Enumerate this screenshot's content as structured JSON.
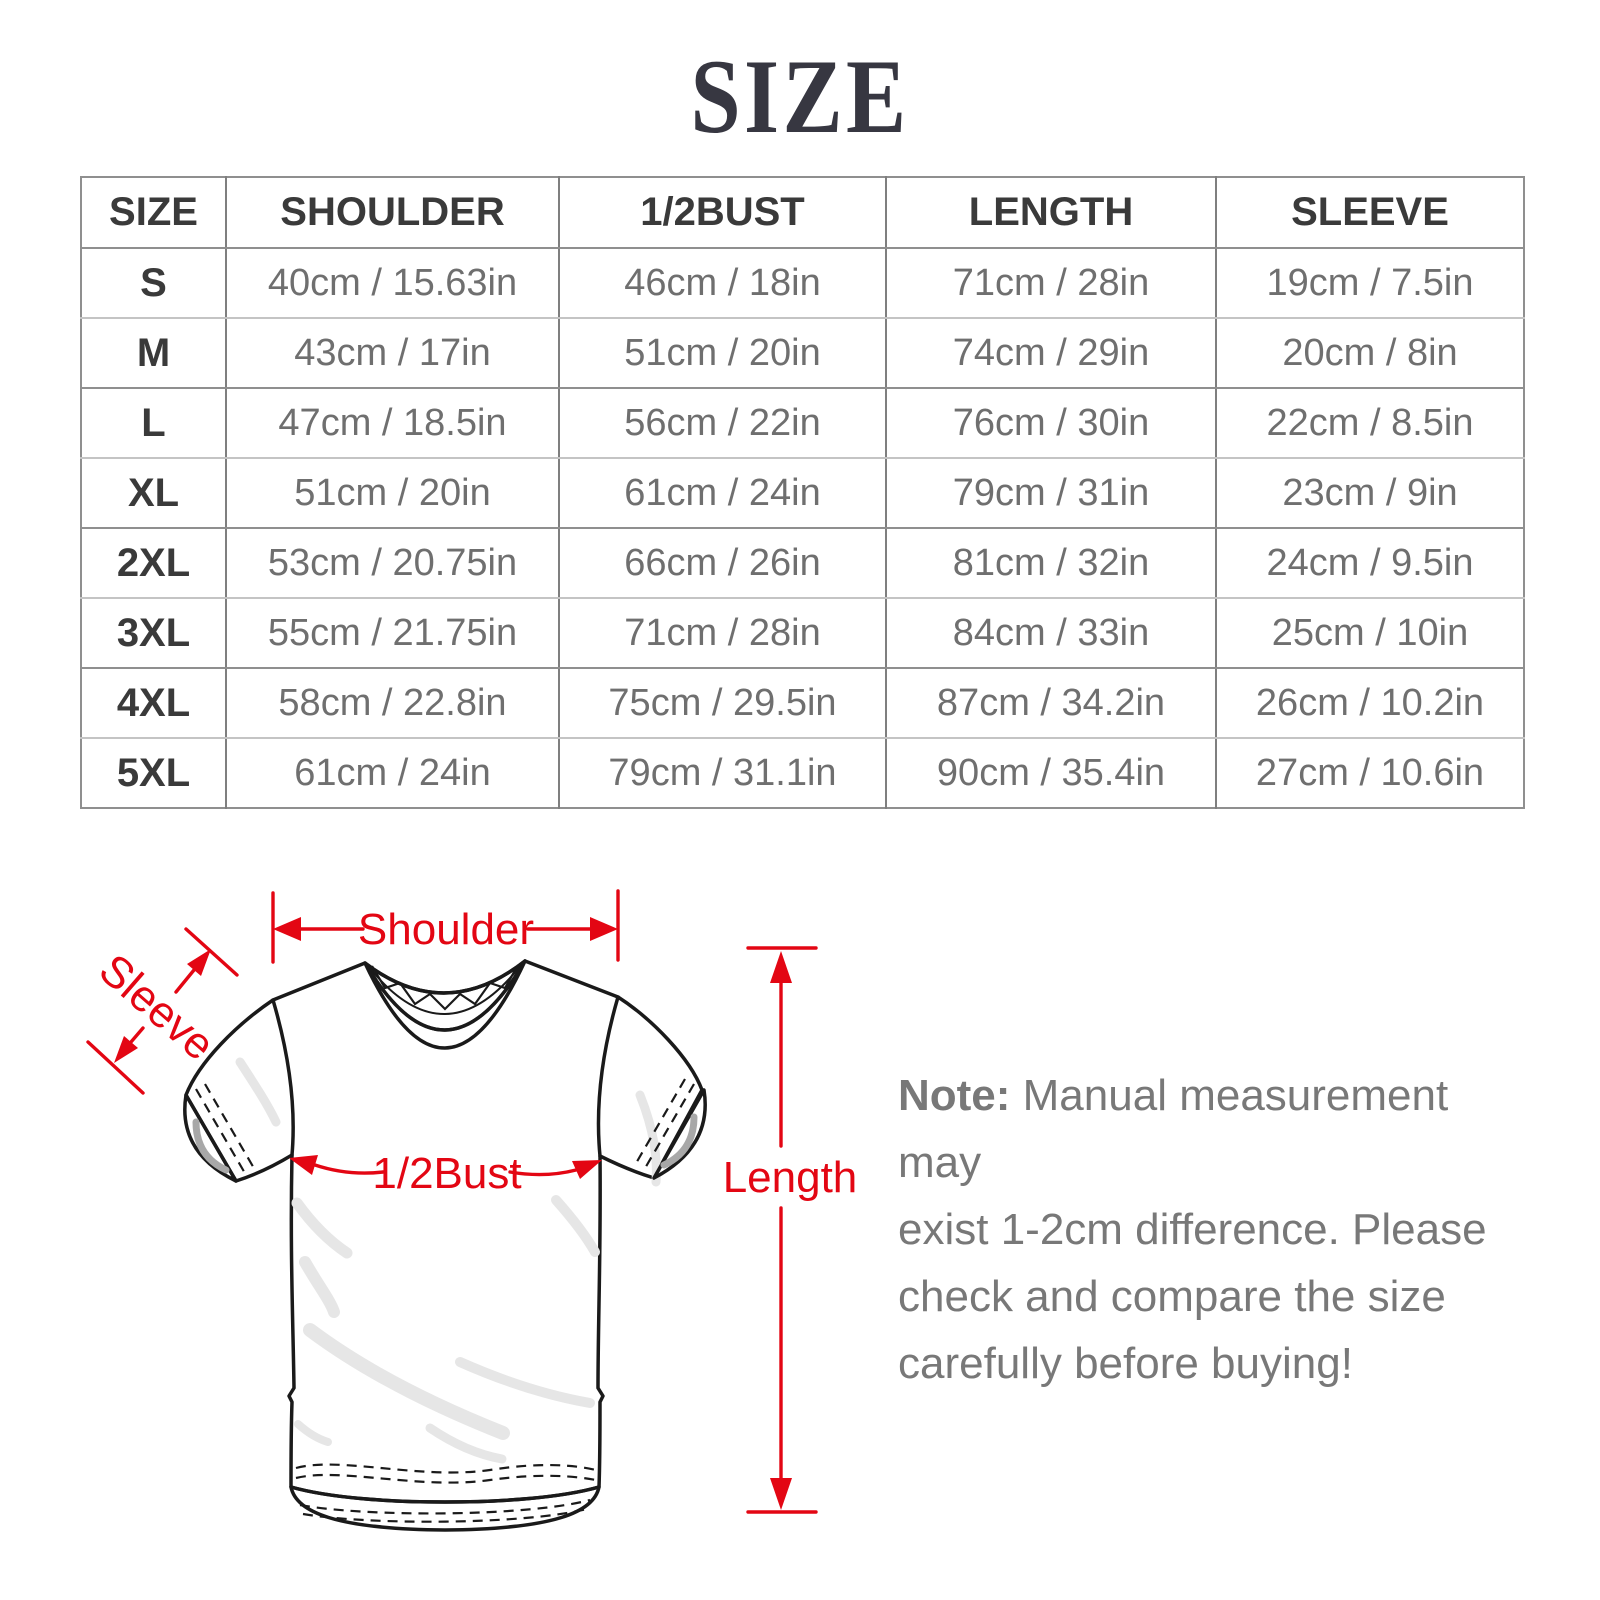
{
  "title": "SIZE",
  "colors": {
    "accent_red": "#e30613",
    "table_header_text": "#3a3a3a",
    "table_cell_text": "#6f6f6f",
    "note_text": "#787878"
  },
  "table": {
    "columns": [
      "SIZE",
      "SHOULDER",
      "1/2BUST",
      "LENGTH",
      "SLEEVE"
    ],
    "rows": [
      [
        "S",
        "40cm / 15.63in",
        "46cm / 18in",
        "71cm / 28in",
        "19cm / 7.5in"
      ],
      [
        "M",
        "43cm / 17in",
        "51cm / 20in",
        "74cm / 29in",
        "20cm / 8in"
      ],
      [
        "L",
        "47cm / 18.5in",
        "56cm / 22in",
        "76cm / 30in",
        "22cm / 8.5in"
      ],
      [
        "XL",
        "51cm / 20in",
        "61cm / 24in",
        "79cm / 31in",
        "23cm / 9in"
      ],
      [
        "2XL",
        "53cm / 20.75in",
        "66cm / 26in",
        "81cm / 32in",
        "24cm / 9.5in"
      ],
      [
        "3XL",
        "55cm / 21.75in",
        "71cm / 28in",
        "84cm / 33in",
        "25cm / 10in"
      ],
      [
        "4XL",
        "58cm / 22.8in",
        "75cm / 29.5in",
        "87cm / 34.2in",
        "26cm / 10.2in"
      ],
      [
        "5XL",
        "61cm / 24in",
        "79cm / 31.1in",
        "90cm / 35.4in",
        "27cm / 10.6in"
      ]
    ]
  },
  "diagram": {
    "labels": {
      "shoulder": "Shoulder",
      "sleeve": "Sleeve",
      "bust": "1/2Bust",
      "length": "Length"
    }
  },
  "note": {
    "label": "Note:",
    "lines": [
      "Manual measurement may",
      "exist 1-2cm difference. Please",
      "check and compare the size",
      "carefully before buying!"
    ]
  }
}
